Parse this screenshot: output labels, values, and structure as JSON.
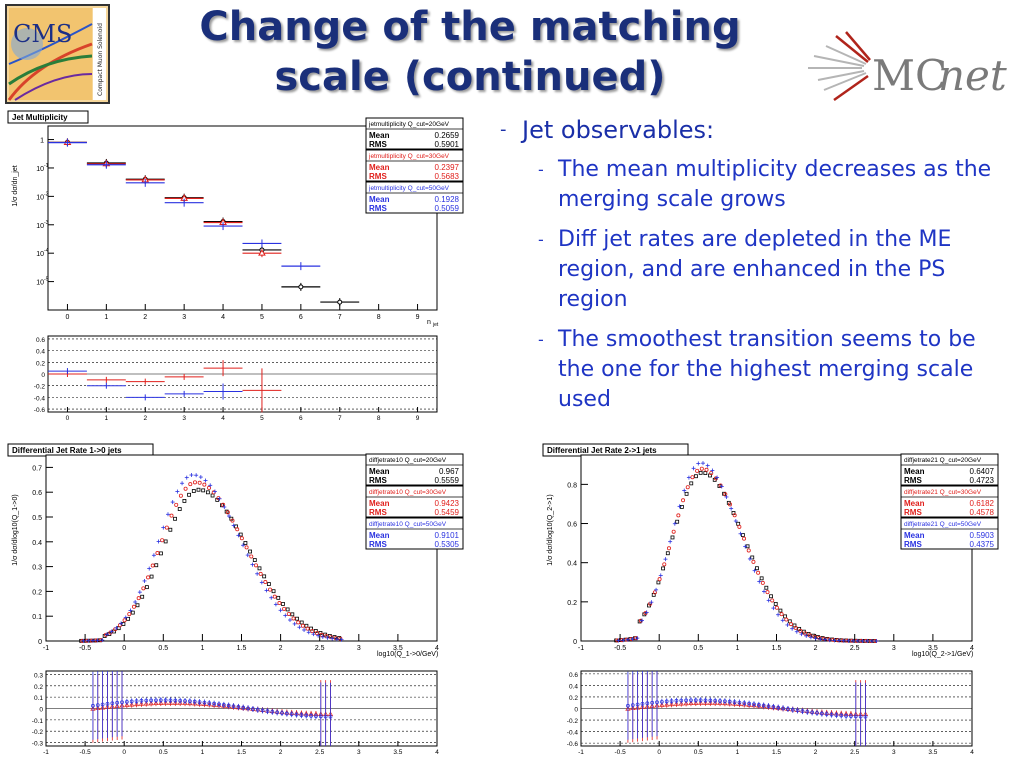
{
  "slide": {
    "title_line1": "Change of the matching",
    "title_line2": "scale (continued)",
    "bullet_main": "Jet observables:",
    "sub_bullets": [
      "The mean multiplicity decreases as the merging scale grows",
      "Diff jet rates are depleted in the ME region, and are enhanced in the PS region",
      "The smoothest transition seems to be the one for the highest merging scale used"
    ],
    "bullet_dash": "-"
  },
  "logos": {
    "cms": {
      "text": "CMS",
      "subtext": "Compact Muon Solenoid"
    },
    "mcnet": {
      "text_mc": "MC",
      "text_net": "net"
    }
  },
  "colors": {
    "title": "#1a2f7a",
    "text": "#1f35c4",
    "series20": "#000000",
    "series30": "#e0201c",
    "series50": "#2a32e0"
  },
  "chart_data": [
    {
      "type": "scatter",
      "title": "Jet Multiplicity",
      "ylabel": "1/σ dσ/dn_jet",
      "xlabel": "n_jet",
      "xlim": [
        -0.5,
        9.5
      ],
      "log_y": true,
      "ylim": [
        1e-06,
        3
      ],
      "x_ticks": [
        "0",
        "1",
        "2",
        "3",
        "4",
        "5",
        "6",
        "7",
        "8",
        "9"
      ],
      "y_ticks": [
        "1",
        "10^-1",
        "10^-2",
        "10^-3",
        "10^-4",
        "10^-5"
      ],
      "stat_boxes": [
        {
          "label": "jetmultiplicity Q_cut=20GeV",
          "mean": "0.2659",
          "rms": "0.5901",
          "color": "#000000"
        },
        {
          "label": "jetmultiplicity Q_cut=30GeV",
          "mean": "0.2397",
          "rms": "0.5683",
          "color": "#e0201c"
        },
        {
          "label": "jetmultiplicity Q_cut=50GeV",
          "mean": "0.1928",
          "rms": "0.5059",
          "color": "#2a32e0"
        }
      ],
      "series": [
        {
          "name": "20GeV",
          "x": [
            0,
            1,
            2,
            3,
            4,
            5,
            6,
            7
          ],
          "y": [
            0.8,
            0.15,
            0.04,
            0.009,
            0.0013,
            0.00013,
            6.5e-06,
            1.9e-06
          ]
        },
        {
          "name": "30GeV",
          "x": [
            0,
            1,
            2,
            3,
            4,
            5
          ],
          "y": [
            0.79,
            0.14,
            0.038,
            0.0085,
            0.0012,
            0.0001
          ]
        },
        {
          "name": "50GeV",
          "x": [
            0,
            1,
            2,
            3,
            4,
            5,
            6
          ],
          "y": [
            0.78,
            0.13,
            0.03,
            0.006,
            0.0009,
            0.00022,
            3.5e-05
          ]
        }
      ],
      "ratio": {
        "ylim": [
          -0.65,
          0.65
        ],
        "y_ticks": [
          "0.6",
          "0.4",
          "0.2",
          "0",
          "-0.2",
          "-0.4",
          "-0.6"
        ],
        "series": [
          {
            "name": "30GeV",
            "x": [
              0,
              1,
              2,
              3,
              4,
              5
            ],
            "y": [
              0.0,
              -0.1,
              -0.13,
              -0.05,
              0.1,
              -0.28
            ]
          },
          {
            "name": "50GeV",
            "x": [
              0,
              1,
              2,
              3,
              4
            ],
            "y": [
              0.05,
              -0.2,
              -0.4,
              -0.34,
              -0.3
            ]
          }
        ]
      }
    },
    {
      "type": "scatter",
      "title": "Differential Jet Rate 1->0 jets",
      "ylabel": "1/σ dσ/dlog10(Q_1->0)",
      "xlabel": "log10(Q_1->0/GeV)",
      "xlim": [
        -1,
        4
      ],
      "ylim": [
        0,
        0.75
      ],
      "x_ticks": [
        "-1",
        "-0.5",
        "0",
        "0.5",
        "1",
        "1.5",
        "2",
        "2.5",
        "3",
        "3.5",
        "4"
      ],
      "y_ticks": [
        "0",
        "0.1",
        "0.2",
        "0.3",
        "0.4",
        "0.5",
        "0.6",
        "0.7"
      ],
      "stat_boxes": [
        {
          "label": "diffjetrate10 Q_cut=20GeV",
          "mean": "0.967",
          "rms": "0.5559",
          "color": "#000000"
        },
        {
          "label": "diffjetrate10 Q_cut=30GeV",
          "mean": "0.9423",
          "rms": "0.5459",
          "color": "#e0201c"
        },
        {
          "label": "diffjetrate10 Q_cut=50GeV",
          "mean": "0.9101",
          "rms": "0.5305",
          "color": "#2a32e0"
        }
      ],
      "peaks": [
        0.61,
        0.64,
        0.67
      ],
      "centers": [
        0.95,
        0.9,
        0.85
      ],
      "widths": [
        0.56,
        0.55,
        0.53
      ],
      "ratio": {
        "ylim": [
          -0.33,
          0.33
        ],
        "y_ticks": [
          "0.3",
          "0.2",
          "0.1",
          "0",
          "-0.1",
          "-0.2",
          "-0.3"
        ]
      }
    },
    {
      "type": "scatter",
      "title": "Differential Jet Rate 2->1 jets",
      "ylabel": "1/σ dσ/dlog10(Q_2->1)",
      "xlabel": "log10(Q_2->1/GeV)",
      "xlim": [
        -1,
        4
      ],
      "ylim": [
        0,
        0.95
      ],
      "x_ticks": [
        "-1",
        "-0.5",
        "0",
        "0.5",
        "1",
        "1.5",
        "2",
        "2.5",
        "3",
        "3.5",
        "4"
      ],
      "y_ticks": [
        "0",
        "0.2",
        "0.4",
        "0.6",
        "0.8"
      ],
      "stat_boxes": [
        {
          "label": "diffjetrate21 Q_cut=20GeV",
          "mean": "0.6407",
          "rms": "0.4723",
          "color": "#000000"
        },
        {
          "label": "diffjetrate21 Q_cut=30GeV",
          "mean": "0.6182",
          "rms": "0.4578",
          "color": "#e0201c"
        },
        {
          "label": "diffjetrate21 Q_cut=50GeV",
          "mean": "0.5903",
          "rms": "0.4375",
          "color": "#2a32e0"
        }
      ],
      "peaks": [
        0.86,
        0.88,
        0.91
      ],
      "centers": [
        0.55,
        0.53,
        0.5
      ],
      "widths": [
        0.47,
        0.46,
        0.44
      ],
      "ratio": {
        "ylim": [
          -0.65,
          0.65
        ],
        "y_ticks": [
          "0.6",
          "0.4",
          "0.2",
          "0",
          "-0.2",
          "-0.4",
          "-0.6"
        ]
      }
    }
  ]
}
